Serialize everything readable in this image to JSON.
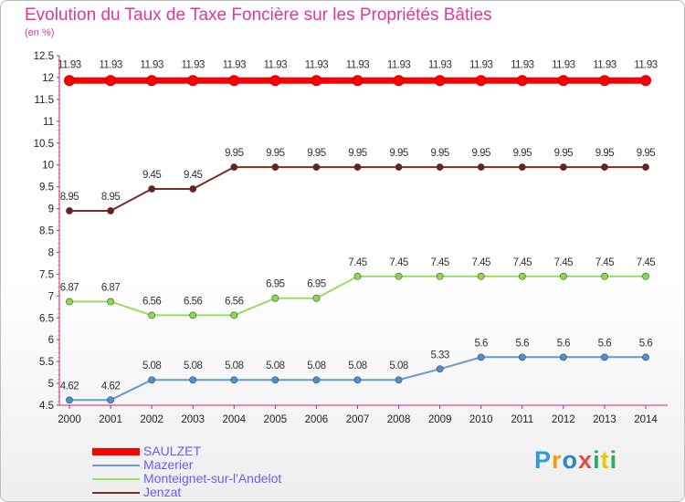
{
  "title": "Evolution du Taux de Taxe Foncière sur les Propriétés Bâties",
  "unit": "(en %)",
  "logo": {
    "letters": [
      "P",
      "r",
      "o",
      "x",
      "i",
      "t",
      "i"
    ],
    "colors": [
      "#3399dd",
      "#f39c12",
      "#2e86c1",
      "#e74c3c",
      "#27ae60",
      "#f1c40f",
      "#27ae60"
    ]
  },
  "chart_data": {
    "type": "line",
    "title": "Evolution du Taux de Taxe Foncière sur les Propriétés Bâties",
    "ylabel": "(en %)",
    "xlabel": "",
    "ylim": [
      4.5,
      12.5
    ],
    "y_ticks": [
      "4.5",
      "5",
      "5.5",
      "6",
      "6.5",
      "7",
      "7.5",
      "8",
      "8.5",
      "9",
      "9.5",
      "10",
      "10.5",
      "11",
      "11.5",
      "12",
      "12.5"
    ],
    "x": [
      "2000",
      "2001",
      "2002",
      "2003",
      "2004",
      "2005",
      "2006",
      "2007",
      "2008",
      "2009",
      "2010",
      "2011",
      "2012",
      "2013",
      "2014"
    ],
    "grid": false,
    "legend_position": "bottom-left",
    "series": [
      {
        "name": "SAULZET",
        "color": "#ff0000",
        "marker": "#ff0000",
        "width": 7,
        "values": [
          11.93,
          11.93,
          11.93,
          11.93,
          11.93,
          11.93,
          11.93,
          11.93,
          11.93,
          11.93,
          11.93,
          11.93,
          11.93,
          11.93,
          11.93
        ],
        "labels": [
          "11.93",
          "11.93",
          "11.93",
          "11.93",
          "11.93",
          "11.93",
          "11.93",
          "11.93",
          "11.93",
          "11.93",
          "11.93",
          "11.93",
          "11.93",
          "11.93",
          "11.93"
        ]
      },
      {
        "name": "Mazerier",
        "color": "#6699cc",
        "marker": "#4a90d9",
        "width": 2,
        "values": [
          4.62,
          4.62,
          5.08,
          5.08,
          5.08,
          5.08,
          5.08,
          5.08,
          5.08,
          5.33,
          5.6,
          5.6,
          5.6,
          5.6,
          5.6
        ],
        "labels": [
          "4.62",
          "4.62",
          "5.08",
          "5.08",
          "5.08",
          "5.08",
          "5.08",
          "5.08",
          "5.08",
          "5.33",
          "5.6",
          "5.6",
          "5.6",
          "5.6",
          "5.6"
        ]
      },
      {
        "name": "Monteignet-sur-l'Andelot",
        "color": "#99dd66",
        "marker": "#88dd44",
        "width": 2,
        "values": [
          6.87,
          6.87,
          6.56,
          6.56,
          6.56,
          6.95,
          6.95,
          7.45,
          7.45,
          7.45,
          7.45,
          7.45,
          7.45,
          7.45,
          7.45
        ],
        "labels": [
          "6.87",
          "6.87",
          "6.56",
          "6.56",
          "6.56",
          "6.95",
          "6.95",
          "7.45",
          "7.45",
          "7.45",
          "7.45",
          "7.45",
          "7.45",
          "7.45",
          "7.45"
        ]
      },
      {
        "name": "Jenzat",
        "color": "#7a2a2a",
        "marker": "#6b1f1f",
        "width": 2,
        "values": [
          8.95,
          8.95,
          9.45,
          9.45,
          9.95,
          9.95,
          9.95,
          9.95,
          9.95,
          9.95,
          9.95,
          9.95,
          9.95,
          9.95,
          9.95
        ],
        "labels": [
          "8.95",
          "8.95",
          "9.45",
          "9.45",
          "9.95",
          "9.95",
          "9.95",
          "9.95",
          "9.95",
          "9.95",
          "9.95",
          "9.95",
          "9.95",
          "9.95",
          "9.95"
        ]
      }
    ]
  }
}
